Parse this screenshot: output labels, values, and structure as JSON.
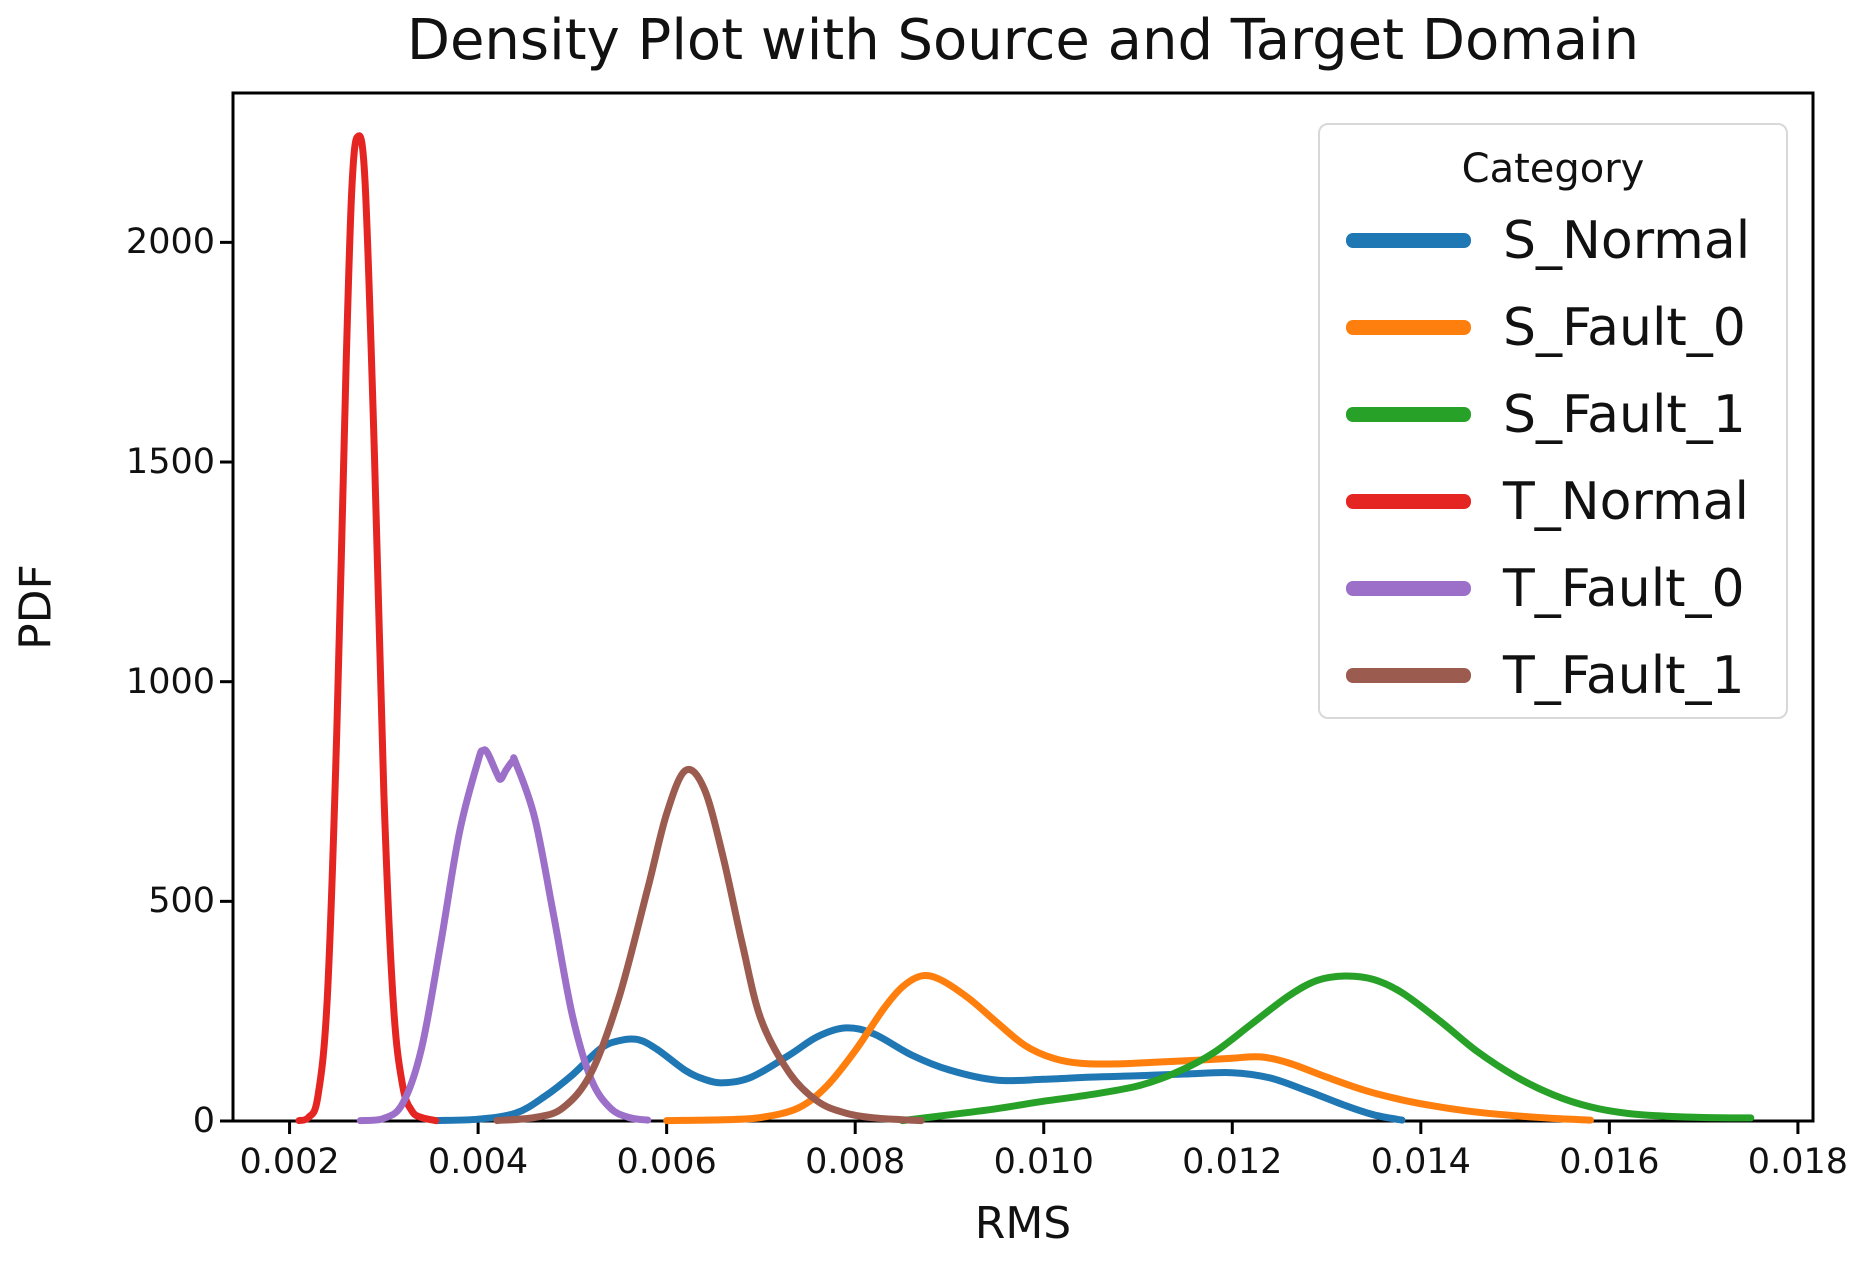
{
  "title": "Density Plot with Source and Target Domain",
  "legend": {
    "title": "Category",
    "items": [
      {
        "label": "S_Normal",
        "color": "#1f77b4"
      },
      {
        "label": "S_Fault_0",
        "color": "#ff7f0e"
      },
      {
        "label": "S_Fault_1",
        "color": "#28a128"
      },
      {
        "label": "T_Normal",
        "color": "#e52521"
      },
      {
        "label": "T_Fault_0",
        "color": "#9c6fc9"
      },
      {
        "label": "T_Fault_1",
        "color": "#9c5b4f"
      }
    ]
  },
  "chart_data": {
    "type": "line",
    "title": "Density Plot with Source and Target Domain",
    "xlabel": "RMS",
    "ylabel": "PDF",
    "xlim": [
      0.0014,
      0.01816
    ],
    "ylim": [
      0,
      2340
    ],
    "grid": false,
    "legend_position": "upper right inside",
    "axis_color": "#000000",
    "xticks": {
      "values": [
        0.002,
        0.004,
        0.006,
        0.008,
        0.01,
        0.012,
        0.014,
        0.016,
        0.018
      ],
      "labels": [
        "0.002",
        "0.004",
        "0.006",
        "0.008",
        "0.010",
        "0.012",
        "0.014",
        "0.016",
        "0.018"
      ]
    },
    "yticks": {
      "values": [
        0,
        500,
        1000,
        1500,
        2000
      ],
      "labels": [
        "0",
        "500",
        "1000",
        "1500",
        "2000"
      ]
    },
    "series": [
      {
        "name": "S_Normal",
        "color": "#1f77b4",
        "peaks_note": "bumps ~185 @0.0057, ~212 @0.0079, ~110 @0.0120",
        "points": [
          [
            0.00355,
            1
          ],
          [
            0.004,
            4
          ],
          [
            0.0044,
            18
          ],
          [
            0.0047,
            55
          ],
          [
            0.005,
            105
          ],
          [
            0.0053,
            165
          ],
          [
            0.0055,
            183
          ],
          [
            0.0057,
            185
          ],
          [
            0.0059,
            163
          ],
          [
            0.0062,
            115
          ],
          [
            0.0064,
            95
          ],
          [
            0.0066,
            87
          ],
          [
            0.0069,
            100
          ],
          [
            0.0073,
            150
          ],
          [
            0.0076,
            192
          ],
          [
            0.0079,
            212
          ],
          [
            0.0082,
            198
          ],
          [
            0.0086,
            150
          ],
          [
            0.009,
            116
          ],
          [
            0.0095,
            93
          ],
          [
            0.01,
            95
          ],
          [
            0.0105,
            100
          ],
          [
            0.011,
            103
          ],
          [
            0.0115,
            107
          ],
          [
            0.012,
            110
          ],
          [
            0.0124,
            98
          ],
          [
            0.0128,
            68
          ],
          [
            0.0132,
            35
          ],
          [
            0.0135,
            14
          ],
          [
            0.0138,
            2
          ]
        ]
      },
      {
        "name": "S_Fault_0",
        "color": "#ff7f0e",
        "peaks_note": "peak ~330 @0.0087, shoulder ~146 @0.0123",
        "points": [
          [
            0.006,
            1
          ],
          [
            0.0066,
            3
          ],
          [
            0.007,
            8
          ],
          [
            0.0074,
            30
          ],
          [
            0.0077,
            80
          ],
          [
            0.008,
            160
          ],
          [
            0.0083,
            255
          ],
          [
            0.0085,
            305
          ],
          [
            0.0087,
            330
          ],
          [
            0.0089,
            322
          ],
          [
            0.0092,
            280
          ],
          [
            0.0095,
            225
          ],
          [
            0.0098,
            172
          ],
          [
            0.0101,
            143
          ],
          [
            0.0104,
            131
          ],
          [
            0.0108,
            130
          ],
          [
            0.0112,
            134
          ],
          [
            0.0116,
            138
          ],
          [
            0.012,
            143
          ],
          [
            0.0123,
            146
          ],
          [
            0.0126,
            132
          ],
          [
            0.013,
            100
          ],
          [
            0.0134,
            70
          ],
          [
            0.0138,
            48
          ],
          [
            0.0142,
            32
          ],
          [
            0.0146,
            20
          ],
          [
            0.015,
            12
          ],
          [
            0.0154,
            6
          ],
          [
            0.0158,
            2
          ]
        ]
      },
      {
        "name": "S_Fault_1",
        "color": "#28a128",
        "peaks_note": "peak ~330 @0.0131, long tail to 0.0175",
        "points": [
          [
            0.0085,
            1
          ],
          [
            0.009,
            14
          ],
          [
            0.0095,
            28
          ],
          [
            0.01,
            45
          ],
          [
            0.0105,
            60
          ],
          [
            0.011,
            80
          ],
          [
            0.0114,
            110
          ],
          [
            0.0118,
            155
          ],
          [
            0.0122,
            220
          ],
          [
            0.0126,
            285
          ],
          [
            0.0129,
            320
          ],
          [
            0.0132,
            330
          ],
          [
            0.0135,
            322
          ],
          [
            0.0138,
            292
          ],
          [
            0.0142,
            228
          ],
          [
            0.0146,
            158
          ],
          [
            0.015,
            102
          ],
          [
            0.0154,
            60
          ],
          [
            0.0158,
            32
          ],
          [
            0.0162,
            17
          ],
          [
            0.0166,
            11
          ],
          [
            0.017,
            8
          ],
          [
            0.0175,
            7
          ]
        ]
      },
      {
        "name": "T_Normal",
        "color": "#e52521",
        "peaks_note": "sharp peak ~2240 @0.0027",
        "points": [
          [
            0.0021,
            1
          ],
          [
            0.0022,
            8
          ],
          [
            0.0023,
            55
          ],
          [
            0.0024,
            280
          ],
          [
            0.0025,
            880
          ],
          [
            0.0026,
            1720
          ],
          [
            0.00266,
            2120
          ],
          [
            0.00272,
            2240
          ],
          [
            0.0028,
            2140
          ],
          [
            0.0029,
            1520
          ],
          [
            0.003,
            750
          ],
          [
            0.0031,
            270
          ],
          [
            0.0032,
            80
          ],
          [
            0.0033,
            22
          ],
          [
            0.0034,
            8
          ],
          [
            0.0035,
            3
          ],
          [
            0.00355,
            1
          ]
        ]
      },
      {
        "name": "T_Fault_0",
        "color": "#9c6fc9",
        "peaks_note": "double top ~843 @0.00405 and ~820 @0.00437",
        "points": [
          [
            0.00275,
            1
          ],
          [
            0.003,
            6
          ],
          [
            0.0032,
            40
          ],
          [
            0.0034,
            165
          ],
          [
            0.0036,
            400
          ],
          [
            0.0038,
            655
          ],
          [
            0.004,
            820
          ],
          [
            0.00405,
            843
          ],
          [
            0.0041,
            838
          ],
          [
            0.0042,
            790
          ],
          [
            0.00424,
            778
          ],
          [
            0.0043,
            800
          ],
          [
            0.00437,
            820
          ],
          [
            0.0044,
            815
          ],
          [
            0.0046,
            690
          ],
          [
            0.0048,
            470
          ],
          [
            0.005,
            240
          ],
          [
            0.0052,
            95
          ],
          [
            0.0054,
            30
          ],
          [
            0.0056,
            8
          ],
          [
            0.0058,
            2
          ]
        ]
      },
      {
        "name": "T_Fault_1",
        "color": "#9c5b4f",
        "peaks_note": "peak ~800 @0.0062",
        "points": [
          [
            0.0042,
            1
          ],
          [
            0.0046,
            8
          ],
          [
            0.0049,
            30
          ],
          [
            0.0052,
            110
          ],
          [
            0.0055,
            285
          ],
          [
            0.0058,
            530
          ],
          [
            0.006,
            700
          ],
          [
            0.0062,
            798
          ],
          [
            0.0064,
            755
          ],
          [
            0.0066,
            600
          ],
          [
            0.0068,
            405
          ],
          [
            0.007,
            232
          ],
          [
            0.0073,
            110
          ],
          [
            0.0076,
            45
          ],
          [
            0.0079,
            18
          ],
          [
            0.0082,
            7
          ],
          [
            0.0085,
            3
          ],
          [
            0.0087,
            1
          ]
        ]
      }
    ]
  }
}
